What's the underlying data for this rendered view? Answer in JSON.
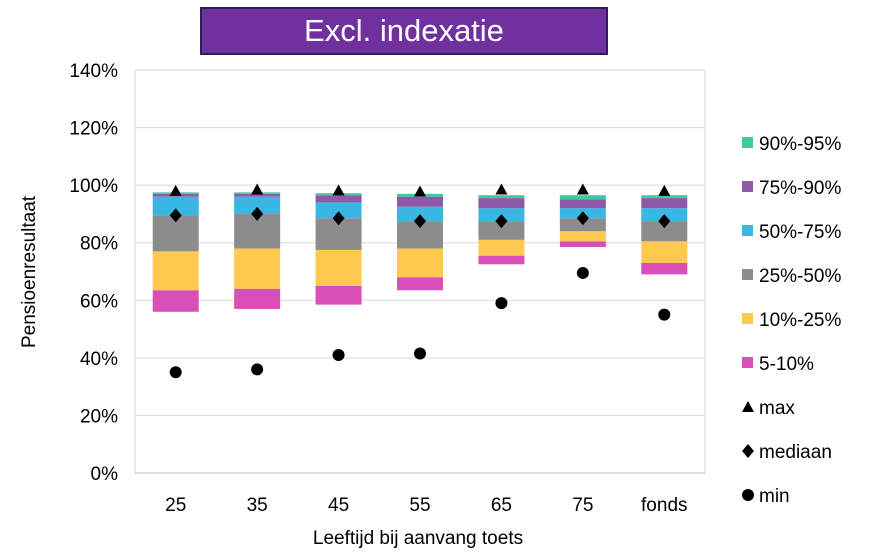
{
  "chart_data": {
    "type": "bar",
    "title": "Excl. indexatie",
    "xlabel": "Leeftijd bij aanvang toets",
    "ylabel": "Pensioenresultaat",
    "ylim": [
      0,
      1.4
    ],
    "yticks": [
      "0%",
      "20%",
      "40%",
      "60%",
      "80%",
      "100%",
      "120%",
      "140%"
    ],
    "grid": true,
    "legend_position": "right",
    "categories": [
      "25",
      "35",
      "45",
      "55",
      "65",
      "75",
      "fonds"
    ],
    "percentiles": {
      "p5": [
        0.56,
        0.57,
        0.585,
        0.635,
        0.725,
        0.785,
        0.69
      ],
      "p10": [
        0.635,
        0.64,
        0.65,
        0.68,
        0.755,
        0.805,
        0.73
      ],
      "p25": [
        0.77,
        0.78,
        0.775,
        0.78,
        0.81,
        0.84,
        0.805
      ],
      "p50": [
        0.895,
        0.9,
        0.885,
        0.875,
        0.875,
        0.885,
        0.875
      ],
      "p75": [
        0.96,
        0.96,
        0.94,
        0.925,
        0.92,
        0.92,
        0.92
      ],
      "p90": [
        0.97,
        0.97,
        0.965,
        0.96,
        0.955,
        0.95,
        0.955
      ],
      "p95": [
        0.975,
        0.975,
        0.972,
        0.97,
        0.965,
        0.965,
        0.965
      ]
    },
    "series": [
      {
        "name": "90%-95%",
        "color": "#3ec9a0"
      },
      {
        "name": "75%-90%",
        "color": "#8e5aa8"
      },
      {
        "name": "50%-75%",
        "color": "#3ab6e3"
      },
      {
        "name": "25%-50%",
        "color": "#8c8c8c"
      },
      {
        "name": "10%-25%",
        "color": "#ffc84f"
      },
      {
        "name": "5-10%",
        "color": "#d84fb8"
      }
    ],
    "markers": [
      {
        "name": "max",
        "symbol": "triangle",
        "values": [
          0.98,
          0.985,
          0.982,
          0.978,
          0.985,
          0.985,
          0.98
        ]
      },
      {
        "name": "mediaan",
        "symbol": "diamond",
        "values": [
          0.895,
          0.9,
          0.885,
          0.875,
          0.875,
          0.885,
          0.875
        ]
      },
      {
        "name": "min",
        "symbol": "circle",
        "values": [
          0.35,
          0.36,
          0.41,
          0.415,
          0.59,
          0.695,
          0.55
        ]
      }
    ]
  }
}
